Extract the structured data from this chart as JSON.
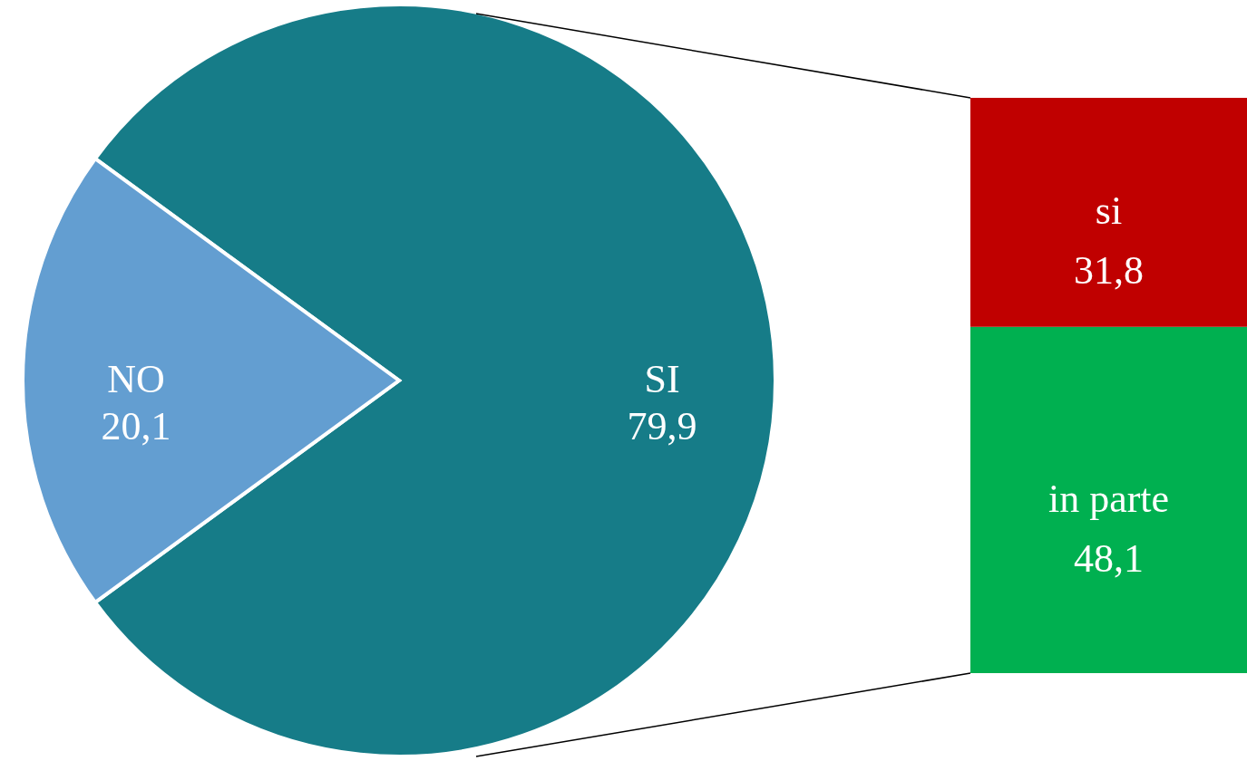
{
  "chart_data": [
    {
      "type": "pie",
      "categories": [
        "SI",
        "NO"
      ],
      "values": [
        79.9,
        20.1
      ],
      "colors": [
        "#167c88",
        "#639ed1"
      ],
      "value_labels": [
        "79,9",
        "20,1"
      ]
    },
    {
      "type": "bar",
      "stacked": true,
      "categories": [
        null
      ],
      "series": [
        {
          "name": "in parte",
          "color": "#00b050",
          "values": [
            48.1
          ],
          "value_labels": [
            "48,1"
          ]
        },
        {
          "name": "si",
          "color": "#c00000",
          "values": [
            31.8
          ],
          "value_labels": [
            "31,8"
          ]
        }
      ]
    }
  ]
}
